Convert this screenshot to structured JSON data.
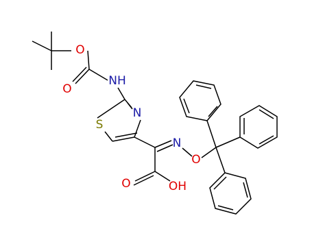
{
  "atoms": [
    {
      "label": "O",
      "color": "#e00000"
    },
    {
      "label": "O",
      "color": "#e00000"
    },
    {
      "label": "NH",
      "color": "#1a1aa6"
    },
    {
      "label": "N",
      "color": "#1a1aa6"
    },
    {
      "label": "S",
      "color": "#7a7a00"
    },
    {
      "label": "N",
      "color": "#1a1aa6"
    },
    {
      "label": "O",
      "color": "#e00000"
    },
    {
      "label": "O",
      "color": "#e00000"
    },
    {
      "label": "OH",
      "color": "#e00000"
    }
  ]
}
